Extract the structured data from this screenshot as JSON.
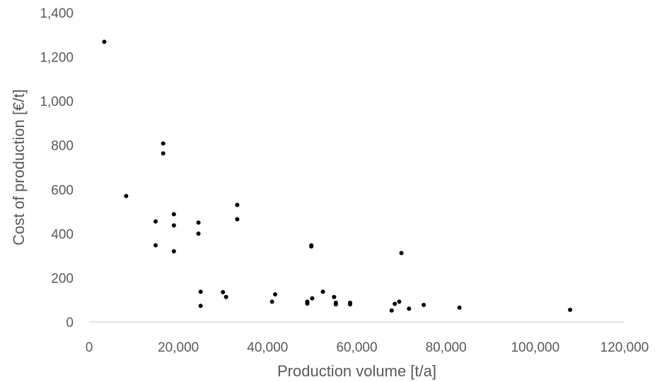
{
  "chart_data": {
    "type": "scatter",
    "xlabel": "Production volume [t/a]",
    "ylabel": "Cost of production [€/t]",
    "xlim": [
      0,
      120000
    ],
    "ylim": [
      0,
      1400
    ],
    "x_ticks": [
      "0",
      "20,000",
      "40,000",
      "60,000",
      "80,000",
      "100,000",
      "120,000"
    ],
    "y_ticks": [
      "0",
      "200",
      "400",
      "600",
      "800",
      "1,000",
      "1,200",
      "1,400"
    ],
    "grid": false,
    "legend": "none",
    "marker_color": "#000000",
    "points": [
      {
        "x": 3400,
        "y": 1268
      },
      {
        "x": 8300,
        "y": 570
      },
      {
        "x": 14900,
        "y": 455
      },
      {
        "x": 14900,
        "y": 347
      },
      {
        "x": 16600,
        "y": 808
      },
      {
        "x": 16600,
        "y": 763
      },
      {
        "x": 19000,
        "y": 488
      },
      {
        "x": 19000,
        "y": 437
      },
      {
        "x": 19000,
        "y": 320
      },
      {
        "x": 24500,
        "y": 450
      },
      {
        "x": 24500,
        "y": 400
      },
      {
        "x": 25000,
        "y": 137
      },
      {
        "x": 25000,
        "y": 73
      },
      {
        "x": 30000,
        "y": 135
      },
      {
        "x": 30700,
        "y": 113
      },
      {
        "x": 33200,
        "y": 530
      },
      {
        "x": 33200,
        "y": 465
      },
      {
        "x": 41000,
        "y": 92
      },
      {
        "x": 41700,
        "y": 125
      },
      {
        "x": 48900,
        "y": 92
      },
      {
        "x": 48900,
        "y": 83
      },
      {
        "x": 49800,
        "y": 347
      },
      {
        "x": 49800,
        "y": 342
      },
      {
        "x": 50000,
        "y": 107
      },
      {
        "x": 52400,
        "y": 137
      },
      {
        "x": 54900,
        "y": 113
      },
      {
        "x": 55300,
        "y": 87
      },
      {
        "x": 55300,
        "y": 80
      },
      {
        "x": 58500,
        "y": 87
      },
      {
        "x": 58500,
        "y": 80
      },
      {
        "x": 67800,
        "y": 52
      },
      {
        "x": 68500,
        "y": 82
      },
      {
        "x": 69500,
        "y": 92
      },
      {
        "x": 70000,
        "y": 312
      },
      {
        "x": 71700,
        "y": 60
      },
      {
        "x": 75000,
        "y": 77
      },
      {
        "x": 83000,
        "y": 65
      },
      {
        "x": 107800,
        "y": 55
      }
    ]
  }
}
